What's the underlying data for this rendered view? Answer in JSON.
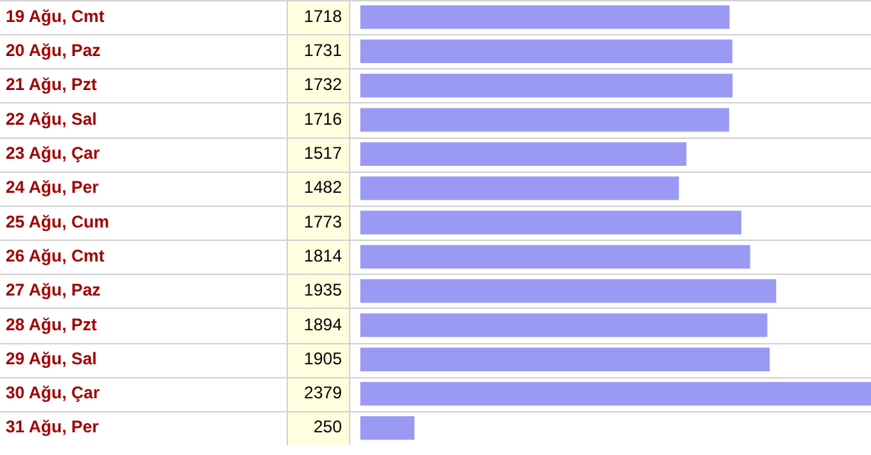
{
  "chart_data": {
    "type": "bar",
    "orientation": "horizontal",
    "data_labels": true,
    "categories": [
      "19 Ağu, Cmt",
      "20 Ağu, Paz",
      "21 Ağu, Pzt",
      "22 Ağu, Sal",
      "23 Ağu, Çar",
      "24 Ağu, Per",
      "25 Ağu, Cum",
      "26 Ağu, Cmt",
      "27 Ağu, Paz",
      "28 Ağu, Pzt",
      "29 Ağu, Sal",
      "30 Ağu, Çar",
      "31 Ağu, Per"
    ],
    "values": [
      1718,
      1731,
      1732,
      1716,
      1517,
      1482,
      1773,
      1814,
      1935,
      1894,
      1905,
      2379,
      250
    ],
    "color": "#9a9af5"
  }
}
